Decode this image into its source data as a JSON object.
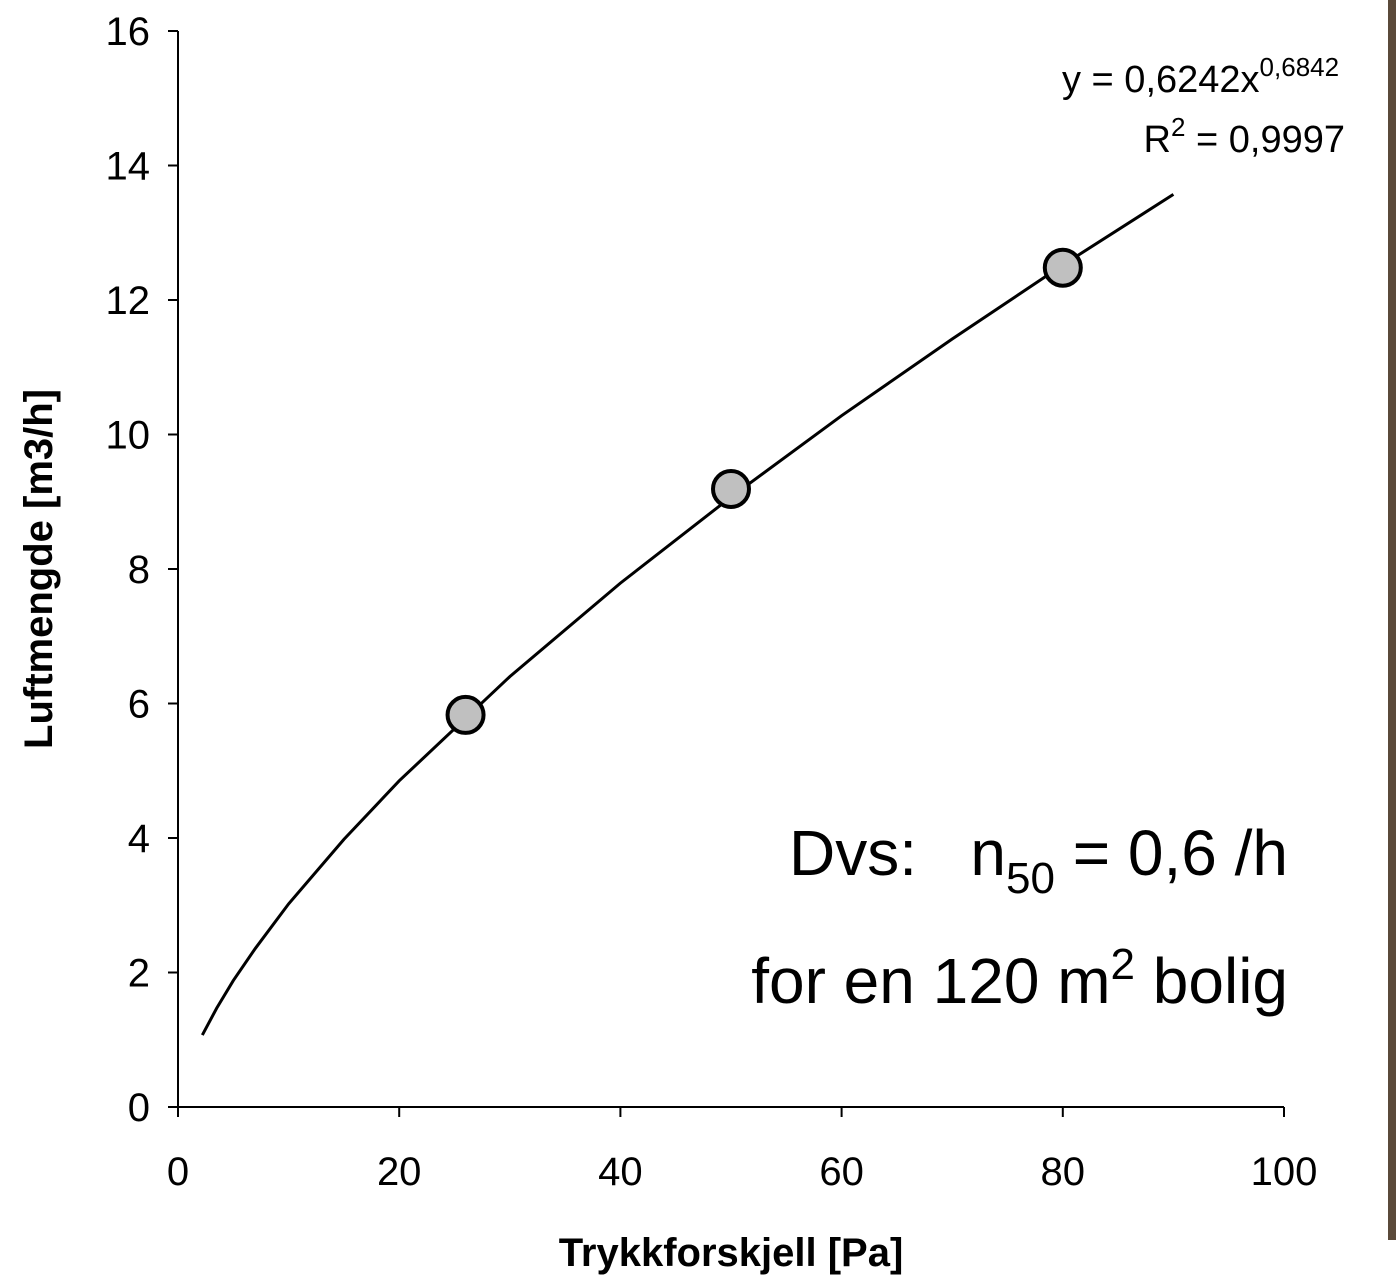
{
  "chart_data": {
    "type": "scatter",
    "xlabel": "Trykkforskjell [Pa]",
    "ylabel": "Luftmengde [m3/h]",
    "xlim": [
      0,
      100
    ],
    "ylim": [
      0,
      16
    ],
    "xticks": [
      0,
      20,
      40,
      60,
      80,
      100
    ],
    "yticks": [
      0,
      2,
      4,
      6,
      8,
      10,
      12,
      14,
      16
    ],
    "points": {
      "x": [
        26,
        50,
        80
      ],
      "values": [
        5.83,
        9.19,
        12.48
      ],
      "color": "#c0c0c0"
    },
    "trendline": {
      "x": [
        2.2,
        3.5,
        5,
        7,
        10,
        15,
        20,
        30,
        40,
        50,
        60,
        70,
        80,
        90
      ],
      "values": [
        1.07,
        1.47,
        1.88,
        2.36,
        3.02,
        3.98,
        4.85,
        6.4,
        7.79,
        9.07,
        10.28,
        11.42,
        12.52,
        13.57
      ],
      "color": "#000000"
    },
    "annotations": {
      "equation": [
        "y = 0,6242x",
        "0,6842"
      ],
      "r_squared": [
        "R",
        "2",
        " = 0,9997"
      ],
      "result": [
        "Dvs:   n",
        "50",
        " = 0,6 /h"
      ],
      "note": [
        "for en 120 m",
        "2",
        " bolig"
      ]
    }
  }
}
